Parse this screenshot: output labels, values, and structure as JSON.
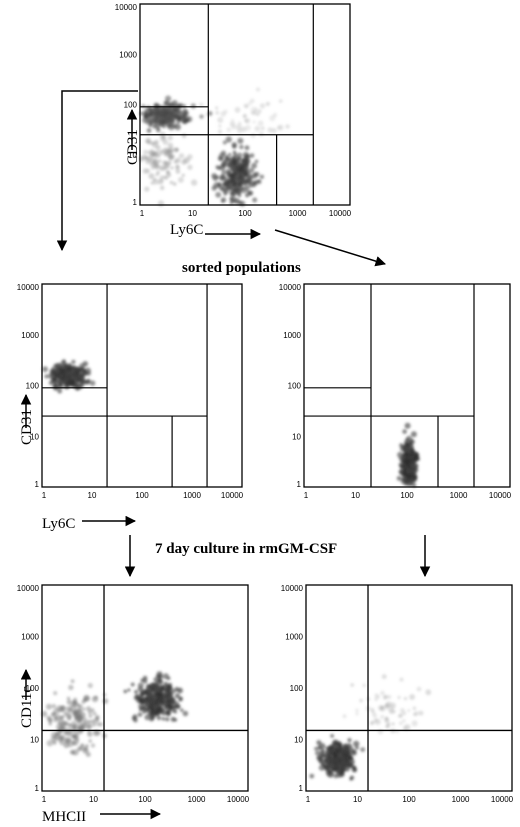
{
  "chart_data": [
    {
      "type": "scatter",
      "id": "gated-original",
      "xlabel": "Ly6C",
      "ylabel": "CD31",
      "xscale": "log",
      "yscale": "log",
      "xlim": [
        1,
        10000
      ],
      "ylim": [
        1,
        10000
      ],
      "xticks": [
        "1",
        "10",
        "100",
        "1000",
        "10000"
      ],
      "yticks": [
        "1",
        "10",
        "100",
        "1000",
        "10000"
      ],
      "gate_x": [
        20,
        400,
        2000
      ],
      "gate_y": [
        25,
        90
      ],
      "populations": [
        {
          "x": 3,
          "y": 60,
          "density": 0.9,
          "spread": [
            0.4,
            0.2
          ]
        },
        {
          "x": 2.5,
          "y": 8,
          "density": 0.4,
          "spread": [
            0.5,
            0.5
          ]
        },
        {
          "x": 70,
          "y": 4,
          "density": 0.95,
          "spread": [
            0.3,
            0.45
          ]
        },
        {
          "x": 100,
          "y": 50,
          "density": 0.2,
          "spread": [
            0.7,
            0.4
          ]
        }
      ]
    },
    {
      "type": "scatter",
      "id": "sorted-cd31hi",
      "xlabel": "Ly6C",
      "ylabel": "CD31",
      "xscale": "log",
      "yscale": "log",
      "xlim": [
        1,
        10000
      ],
      "ylim": [
        1,
        10000
      ],
      "xticks": [
        "1",
        "10",
        "100",
        "1000",
        "10000"
      ],
      "yticks": [
        "1",
        "10",
        "100",
        "1000",
        "10000"
      ],
      "gate_x": [
        20,
        400,
        2000
      ],
      "gate_y": [
        25,
        90
      ],
      "populations": [
        {
          "x": 3.5,
          "y": 150,
          "density": 1.0,
          "spread": [
            0.3,
            0.18
          ]
        }
      ]
    },
    {
      "type": "scatter",
      "id": "sorted-ly6chi",
      "xlabel": "",
      "ylabel": "",
      "xscale": "log",
      "yscale": "log",
      "xlim": [
        1,
        10000
      ],
      "ylim": [
        1,
        10000
      ],
      "xticks": [
        "1",
        "10",
        "100",
        "1000",
        "10000"
      ],
      "yticks": [
        "1",
        "10",
        "100",
        "1000",
        "10000"
      ],
      "gate_x": [
        20,
        400,
        2000
      ],
      "gate_y": [
        25,
        90
      ],
      "populations": [
        {
          "x": 110,
          "y": 3,
          "density": 1.0,
          "spread": [
            0.12,
            0.4
          ]
        }
      ]
    },
    {
      "type": "scatter",
      "id": "culture-a",
      "xlabel": "MHCII",
      "ylabel": "CD11c",
      "xscale": "log",
      "yscale": "log",
      "xlim": [
        1,
        10000
      ],
      "ylim": [
        1,
        10000
      ],
      "xticks": [
        "1",
        "10",
        "100",
        "1000",
        "10000"
      ],
      "yticks": [
        "1",
        "10",
        "100",
        "1000",
        "10000"
      ],
      "gate_x": [
        16
      ],
      "gate_y": [
        15
      ],
      "populations": [
        {
          "x": 170,
          "y": 60,
          "density": 1.0,
          "spread": [
            0.35,
            0.35
          ]
        },
        {
          "x": 4,
          "y": 20,
          "density": 0.6,
          "spread": [
            0.5,
            0.55
          ]
        }
      ]
    },
    {
      "type": "scatter",
      "id": "culture-b",
      "xlabel": "",
      "ylabel": "",
      "xscale": "log",
      "yscale": "log",
      "xlim": [
        1,
        10000
      ],
      "ylim": [
        1,
        10000
      ],
      "xticks": [
        "1",
        "10",
        "100",
        "1000",
        "10000"
      ],
      "yticks": [
        "1",
        "10",
        "100",
        "1000",
        "10000"
      ],
      "gate_x": [
        16
      ],
      "gate_y": [
        15
      ],
      "populations": [
        {
          "x": 4,
          "y": 4,
          "density": 1.0,
          "spread": [
            0.3,
            0.3
          ]
        },
        {
          "x": 40,
          "y": 40,
          "density": 0.25,
          "spread": [
            0.6,
            0.5
          ]
        }
      ]
    }
  ],
  "captions": {
    "sorted": "sorted populations",
    "culture": "7 day culture in rmGM-CSF"
  }
}
